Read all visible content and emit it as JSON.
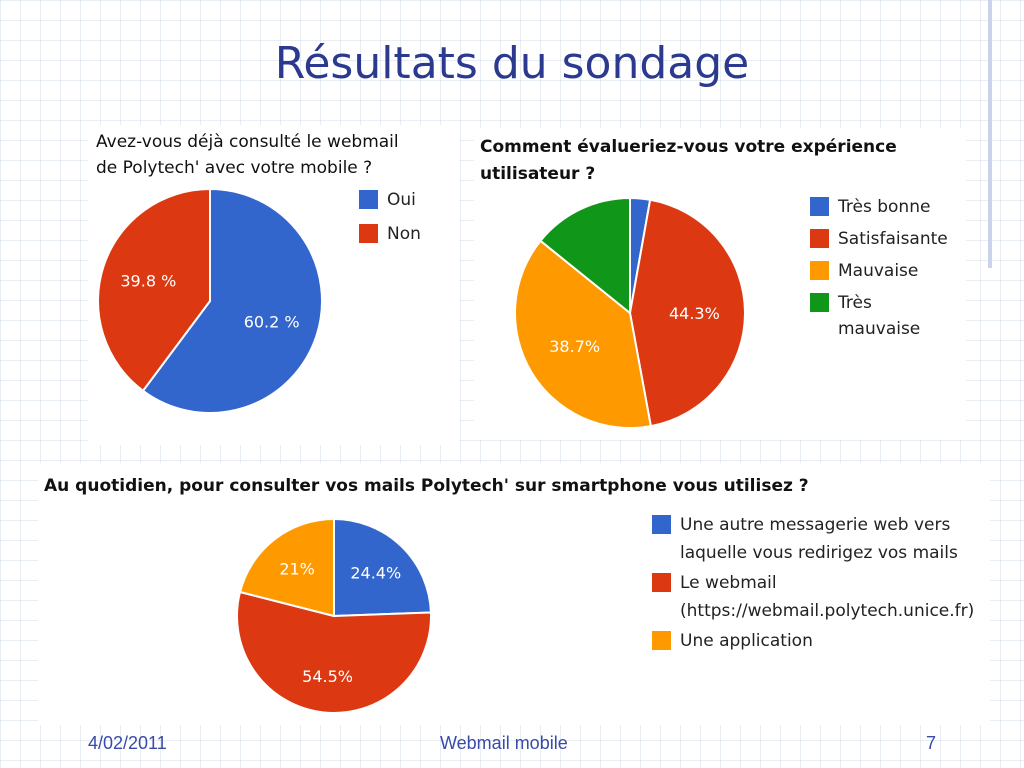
{
  "slide": {
    "title": "Résultats du sondage",
    "footer_date": "4/02/2011",
    "footer_center": "Webmail mobile",
    "footer_page": "7"
  },
  "colors": {
    "blue": "#3366cc",
    "red": "#dc3912",
    "orange": "#ff9900",
    "green": "#109618",
    "title": "#2b3a8f"
  },
  "chart_data": [
    {
      "type": "pie",
      "title_lines": [
        "Avez-vous déjà consulté le webmail",
        "de Polytech' avec votre mobile ?"
      ],
      "categories": [
        "Oui",
        "Non"
      ],
      "values": [
        60.2,
        39.8
      ],
      "labels": [
        "60.2 %",
        "39.8 %"
      ],
      "colors": [
        "#3366cc",
        "#dc3912"
      ],
      "legend_position": "right"
    },
    {
      "type": "pie",
      "title_lines": [
        "Comment évalueriez-vous votre expérience",
        "utilisateur ?"
      ],
      "categories": [
        "Très bonne",
        "Satisfaisante",
        "Mauvaise",
        "Très mauvaise"
      ],
      "legend_lines": [
        [
          "Très bonne"
        ],
        [
          "Satisfaisante"
        ],
        [
          "Mauvaise"
        ],
        [
          "Très",
          "mauvaise"
        ]
      ],
      "values": [
        2.8,
        44.3,
        38.7,
        14.2
      ],
      "labels": [
        "",
        "44.3%",
        "38.7%",
        ""
      ],
      "colors": [
        "#3366cc",
        "#dc3912",
        "#ff9900",
        "#109618"
      ],
      "legend_position": "right"
    },
    {
      "type": "pie",
      "title_lines": [
        "Au quotidien, pour consulter vos mails Polytech' sur smartphone vous utilisez ?"
      ],
      "categories": [
        "Une autre messagerie web vers laquelle vous redirigez vos mails",
        "Le webmail (https://webmail.polytech.unice.fr)",
        "Une application"
      ],
      "legend_lines": [
        [
          "Une autre messagerie web vers",
          "laquelle vous redirigez vos mails"
        ],
        [
          "Le webmail",
          "(https://webmail.polytech.unice.fr)"
        ],
        [
          "Une application"
        ]
      ],
      "values": [
        24.4,
        54.5,
        21.0
      ],
      "labels": [
        "24.4%",
        "54.5%",
        "21%"
      ],
      "colors": [
        "#3366cc",
        "#dc3912",
        "#ff9900"
      ],
      "legend_position": "right"
    }
  ]
}
